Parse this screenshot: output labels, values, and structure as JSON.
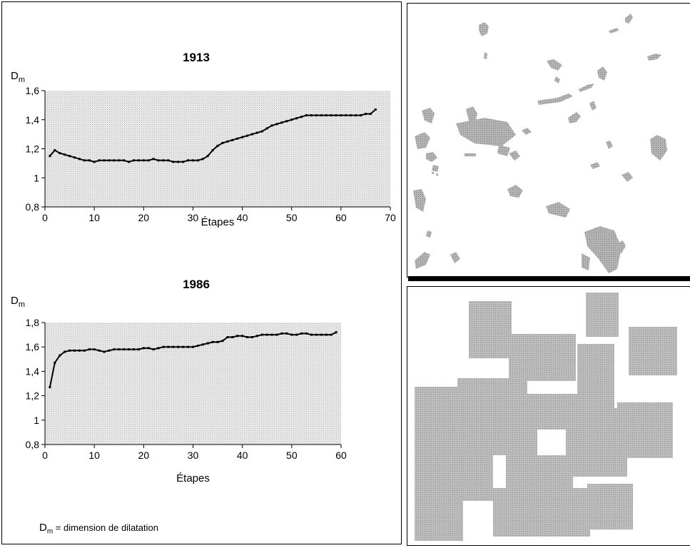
{
  "chart_data": [
    {
      "type": "line",
      "title": "1913",
      "ylabel_main": "D",
      "ylabel_sub": "m",
      "xlabel": "Étapes",
      "xlim": [
        0,
        70
      ],
      "ylim": [
        0.8,
        1.6
      ],
      "xticks": [
        "0",
        "10",
        "20",
        "30",
        "40",
        "50",
        "60",
        "70"
      ],
      "yticks": [
        "0,8",
        "1",
        "1,2",
        "1,4",
        "1,6"
      ],
      "grid": false,
      "series": [
        {
          "x": [
            1,
            2,
            3,
            4,
            5,
            6,
            7,
            8,
            9,
            10,
            11,
            12,
            13,
            14,
            15,
            16,
            17,
            18,
            19,
            20,
            21,
            22,
            23,
            24,
            25,
            26,
            27,
            28,
            29,
            30,
            31,
            32,
            33,
            34,
            35,
            36,
            37,
            38,
            39,
            40,
            41,
            42,
            43,
            44,
            45,
            46,
            47,
            48,
            49,
            50,
            51,
            52,
            53,
            54,
            55,
            56,
            57,
            58,
            59,
            60,
            61,
            62,
            63,
            64,
            65,
            66,
            67
          ],
          "values": [
            1.15,
            1.19,
            1.17,
            1.16,
            1.15,
            1.14,
            1.13,
            1.12,
            1.12,
            1.11,
            1.12,
            1.12,
            1.12,
            1.12,
            1.12,
            1.12,
            1.11,
            1.12,
            1.12,
            1.12,
            1.12,
            1.13,
            1.12,
            1.12,
            1.12,
            1.11,
            1.11,
            1.11,
            1.12,
            1.12,
            1.12,
            1.13,
            1.15,
            1.19,
            1.22,
            1.24,
            1.25,
            1.26,
            1.27,
            1.28,
            1.29,
            1.3,
            1.31,
            1.32,
            1.34,
            1.36,
            1.37,
            1.38,
            1.39,
            1.4,
            1.41,
            1.42,
            1.43,
            1.43,
            1.43,
            1.43,
            1.43,
            1.43,
            1.43,
            1.43,
            1.43,
            1.43,
            1.43,
            1.43,
            1.44,
            1.44,
            1.47
          ]
        }
      ]
    },
    {
      "type": "line",
      "title": "1986",
      "ylabel_main": "D",
      "ylabel_sub": "m",
      "xlabel": "Étapes",
      "xlim": [
        0,
        60
      ],
      "ylim": [
        0.8,
        1.8
      ],
      "xticks": [
        "0",
        "10",
        "20",
        "30",
        "40",
        "50",
        "60"
      ],
      "yticks": [
        "0,8",
        "1",
        "1,2",
        "1,4",
        "1,6",
        "1,8"
      ],
      "grid": false,
      "series": [
        {
          "x": [
            1,
            2,
            3,
            4,
            5,
            6,
            7,
            8,
            9,
            10,
            11,
            12,
            13,
            14,
            15,
            16,
            17,
            18,
            19,
            20,
            21,
            22,
            23,
            24,
            25,
            26,
            27,
            28,
            29,
            30,
            31,
            32,
            33,
            34,
            35,
            36,
            37,
            38,
            39,
            40,
            41,
            42,
            43,
            44,
            45,
            46,
            47,
            48,
            49,
            50,
            51,
            52,
            53,
            54,
            55,
            56,
            57,
            58,
            59
          ],
          "values": [
            1.27,
            1.47,
            1.53,
            1.56,
            1.57,
            1.57,
            1.57,
            1.57,
            1.58,
            1.58,
            1.57,
            1.56,
            1.57,
            1.58,
            1.58,
            1.58,
            1.58,
            1.58,
            1.58,
            1.59,
            1.59,
            1.58,
            1.59,
            1.6,
            1.6,
            1.6,
            1.6,
            1.6,
            1.6,
            1.6,
            1.61,
            1.62,
            1.63,
            1.64,
            1.64,
            1.65,
            1.68,
            1.68,
            1.69,
            1.69,
            1.68,
            1.68,
            1.69,
            1.7,
            1.7,
            1.7,
            1.7,
            1.71,
            1.71,
            1.7,
            1.7,
            1.71,
            1.71,
            1.7,
            1.7,
            1.7,
            1.7,
            1.7,
            1.72
          ]
        }
      ]
    }
  ],
  "footnote": {
    "symbol": "D",
    "sub": "m",
    "text": " = dimension de dilatation"
  },
  "colors": {
    "plot_bg": "#dcdcdc",
    "map_fill": "#a9a9a9",
    "line": "#000000"
  }
}
